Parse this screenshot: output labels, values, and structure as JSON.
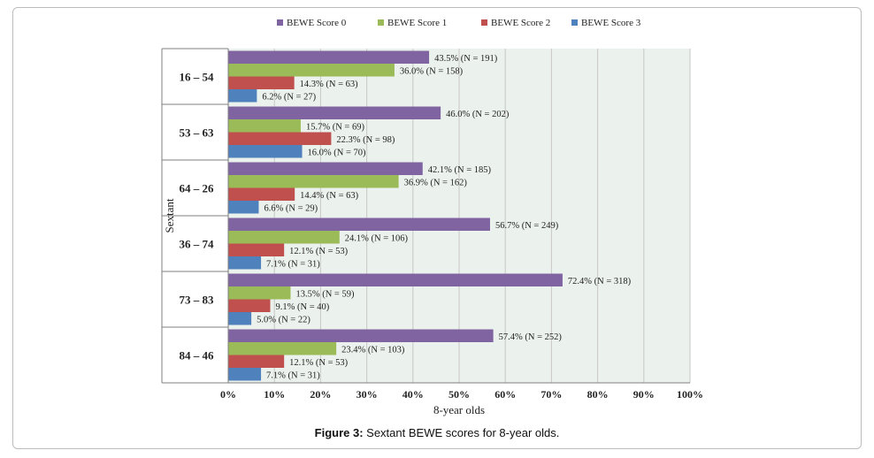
{
  "chart_data": {
    "type": "bar",
    "orientation": "horizontal",
    "xlabel": "8-year olds",
    "ylabel": "Sextant",
    "xlim": [
      0,
      100
    ],
    "xticks": [
      "0%",
      "10%",
      "20%",
      "30%",
      "40%",
      "50%",
      "60%",
      "70%",
      "80%",
      "90%",
      "100%"
    ],
    "categories": [
      "16 – 54",
      "53 – 63",
      "64 – 26",
      "36 – 74",
      "73 – 83",
      "84 – 46"
    ],
    "legend_position": "top",
    "grid": true,
    "series": [
      {
        "name": "BEWE Score 0",
        "color": "#8064a2",
        "values": [
          43.5,
          46.0,
          42.1,
          56.7,
          72.4,
          57.4
        ],
        "labels": [
          "43.5% (N = 191)",
          "46.0% (N = 202)",
          "42.1% (N = 185)",
          "56.7% (N = 249)",
          "72.4% (N = 318)",
          "57.4% (N = 252)"
        ]
      },
      {
        "name": "BEWE Score 1",
        "color": "#9bbb59",
        "values": [
          36.0,
          15.7,
          36.9,
          24.1,
          13.5,
          23.4
        ],
        "labels": [
          "36.0% (N = 158)",
          "15.7% (N = 69)",
          "36.9% (N = 162)",
          "24.1% (N = 106)",
          "13.5% (N = 59)",
          "23.4% (N = 103)"
        ]
      },
      {
        "name": "BEWE Score 2",
        "color": "#c0504d",
        "values": [
          14.3,
          22.3,
          14.4,
          12.1,
          9.1,
          12.1
        ],
        "labels": [
          "14.3% (N = 63)",
          "22.3% (N = 98)",
          "14.4% (N = 63)",
          "12.1% (N = 53)",
          "9.1% (N = 40)",
          "12.1% (N = 53)"
        ]
      },
      {
        "name": "BEWE Score 3",
        "color": "#4f81bd",
        "values": [
          6.2,
          16.0,
          6.6,
          7.1,
          5.0,
          7.1
        ],
        "labels": [
          "6.2% (N = 27)",
          "16.0% (N = 70)",
          "6.6% (N = 29)",
          "7.1% (N = 31)",
          "5.0% (N = 22)",
          "7.1% (N = 31)"
        ]
      }
    ],
    "plot_background": "#ebf1ec"
  },
  "caption": {
    "prefix": "Figure 3:",
    "text": " Sextant BEWE scores for 8-year olds."
  }
}
